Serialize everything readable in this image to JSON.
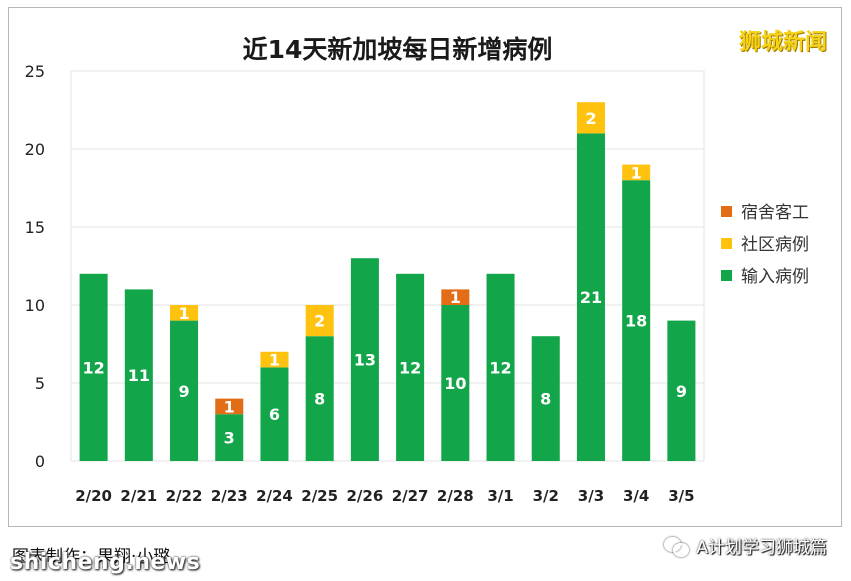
{
  "chart_data": {
    "type": "bar",
    "stacked": true,
    "title": "近14天新加坡每日新增病例",
    "categories": [
      "2/20",
      "2/21",
      "2/22",
      "2/23",
      "2/24",
      "2/25",
      "2/26",
      "2/27",
      "2/28",
      "3/1",
      "3/2",
      "3/3",
      "3/4",
      "3/5"
    ],
    "series": [
      {
        "name": "输入病例",
        "color": "#12a54a",
        "values": [
          12,
          11,
          9,
          3,
          6,
          8,
          13,
          12,
          10,
          12,
          8,
          21,
          18,
          9
        ]
      },
      {
        "name": "社区病例",
        "color": "#fec20f",
        "values": [
          0,
          0,
          1,
          0,
          1,
          2,
          0,
          0,
          0,
          0,
          0,
          2,
          1,
          0
        ]
      },
      {
        "name": "宿舍客工",
        "color": "#e36c16",
        "values": [
          0,
          0,
          0,
          1,
          0,
          0,
          0,
          0,
          1,
          0,
          0,
          0,
          0,
          0
        ]
      }
    ],
    "ylim": [
      0,
      25
    ],
    "yticks": [
      0,
      5,
      10,
      15,
      20,
      25
    ],
    "grid": true,
    "legend_position": "right",
    "legend_order": [
      "宿舍客工",
      "社区病例",
      "输入病例"
    ]
  },
  "brand_text": "狮城新闻",
  "caption": "图表制作：果翔·小璐",
  "watermark_left": "shicheng.news",
  "watermark_right": "A计划学习狮城篇",
  "watermark_icon": "wechat-icon"
}
